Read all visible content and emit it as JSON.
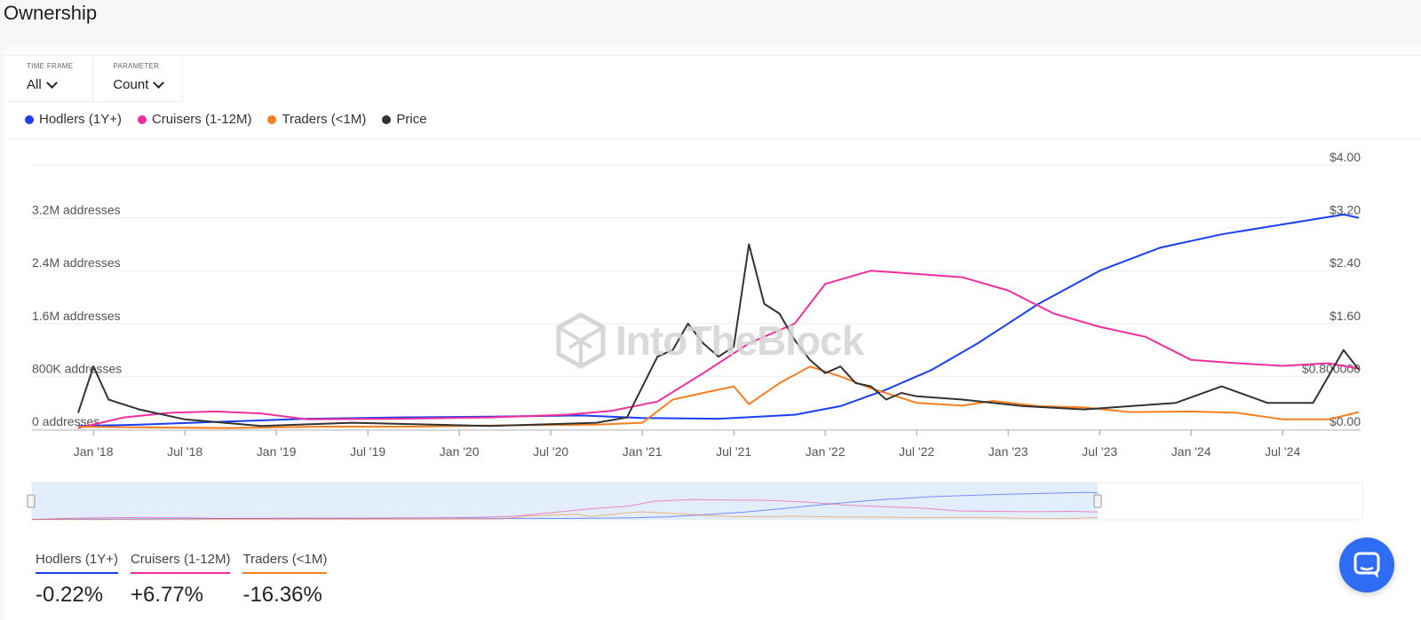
{
  "page": {
    "title": "Ownership"
  },
  "filters": [
    {
      "label": "TIME FRAME",
      "value": "All"
    },
    {
      "label": "PARAMETER",
      "value": "Count"
    }
  ],
  "legend": [
    {
      "label": "Hodlers (1Y+)",
      "color": "#1a3ff2"
    },
    {
      "label": "Cruisers (1-12M)",
      "color": "#f02f9d"
    },
    {
      "label": "Traders (<1M)",
      "color": "#f57f21"
    },
    {
      "label": "Price",
      "color": "#333333"
    }
  ],
  "watermark": "IntoTheBlock",
  "summary": [
    {
      "label": "Hodlers (1Y+)",
      "value": "-0.22%",
      "color": "#1a3ff2"
    },
    {
      "label": "Cruisers (1-12M)",
      "value": "+6.77%",
      "color": "#f02f9d"
    },
    {
      "label": "Traders (<1M)",
      "value": "-16.36%",
      "color": "#f57f21"
    }
  ],
  "icons": {
    "chat": "chat-bubble-icon",
    "dropdown": "chevron-down-icon"
  },
  "chart_data": {
    "type": "line",
    "x_ticks": [
      "Jan '18",
      "Jul '18",
      "Jan '19",
      "Jul '19",
      "Jan '20",
      "Jul '20",
      "Jan '21",
      "Jul '21",
      "Jan '22",
      "Jul '22",
      "Jan '23",
      "Jul '23",
      "Jan '24",
      "Jul '24"
    ],
    "y_left": {
      "ticks": [
        "0 addresses",
        "800K addresses",
        "1.6M addresses",
        "2.4M addresses",
        "3.2M addresses"
      ],
      "range": [
        0,
        4000000
      ]
    },
    "y_right": {
      "ticks": [
        "$0.00",
        "$0.800000",
        "$1.60",
        "$2.40",
        "$3.20",
        "$4.00"
      ],
      "range": [
        0,
        4
      ]
    },
    "x_range": [
      "2017-12",
      "2024-12"
    ],
    "series": [
      {
        "name": "Hodlers (1Y+)",
        "axis": "left",
        "color": "#1a3ff2",
        "x": [
          "2017-12",
          "2018-04",
          "2018-10",
          "2019-03",
          "2019-09",
          "2020-03",
          "2020-09",
          "2021-01",
          "2021-06",
          "2021-11",
          "2022-02",
          "2022-05",
          "2022-08",
          "2022-11",
          "2023-03",
          "2023-07",
          "2023-11",
          "2024-03",
          "2024-07",
          "2024-11",
          "2024-12"
        ],
        "values": [
          50000,
          70000,
          120000,
          160000,
          180000,
          190000,
          210000,
          170000,
          160000,
          220000,
          350000,
          600000,
          900000,
          1300000,
          1900000,
          2400000,
          2750000,
          2950000,
          3100000,
          3250000,
          3200000
        ]
      },
      {
        "name": "Cruisers (1-12M)",
        "axis": "left",
        "color": "#f02f9d",
        "x": [
          "2017-12",
          "2018-03",
          "2018-06",
          "2018-09",
          "2018-12",
          "2019-03",
          "2019-09",
          "2020-03",
          "2020-08",
          "2020-11",
          "2021-02",
          "2021-05",
          "2021-08",
          "2021-11",
          "2022-01",
          "2022-04",
          "2022-07",
          "2022-10",
          "2023-01",
          "2023-04",
          "2023-07",
          "2023-10",
          "2024-01",
          "2024-04",
          "2024-07",
          "2024-10",
          "2024-12"
        ],
        "values": [
          20000,
          180000,
          250000,
          270000,
          240000,
          150000,
          160000,
          180000,
          220000,
          280000,
          420000,
          850000,
          1300000,
          1600000,
          2200000,
          2400000,
          2350000,
          2300000,
          2100000,
          1750000,
          1550000,
          1400000,
          1050000,
          1000000,
          960000,
          1000000,
          920000
        ]
      },
      {
        "name": "Traders (<1M)",
        "axis": "left",
        "color": "#f57f21",
        "x": [
          "2017-12",
          "2018-04",
          "2018-10",
          "2019-04",
          "2019-10",
          "2020-04",
          "2020-10",
          "2021-01",
          "2021-03",
          "2021-05",
          "2021-07",
          "2021-08",
          "2021-10",
          "2021-12",
          "2022-02",
          "2022-04",
          "2022-07",
          "2022-10",
          "2022-12",
          "2023-03",
          "2023-06",
          "2023-09",
          "2024-01",
          "2024-04",
          "2024-07",
          "2024-10",
          "2024-12"
        ],
        "values": [
          40000,
          30000,
          20000,
          40000,
          40000,
          60000,
          70000,
          100000,
          450000,
          550000,
          650000,
          380000,
          700000,
          950000,
          800000,
          620000,
          400000,
          360000,
          430000,
          350000,
          330000,
          260000,
          270000,
          250000,
          150000,
          150000,
          260000
        ]
      },
      {
        "name": "Price",
        "axis": "right",
        "color": "#333333",
        "x": [
          "2017-12",
          "2018-01",
          "2018-02",
          "2018-04",
          "2018-07",
          "2018-12",
          "2019-06",
          "2020-03",
          "2020-10",
          "2020-12",
          "2021-02",
          "2021-03",
          "2021-04",
          "2021-05",
          "2021-06",
          "2021-07",
          "2021-08",
          "2021-09",
          "2021-10",
          "2021-11",
          "2021-12",
          "2022-01",
          "2022-02",
          "2022-03",
          "2022-04",
          "2022-05",
          "2022-06",
          "2022-07",
          "2022-10",
          "2023-02",
          "2023-06",
          "2023-09",
          "2023-12",
          "2024-03",
          "2024-06",
          "2024-09",
          "2024-11",
          "2024-12"
        ],
        "values": [
          0.25,
          0.95,
          0.45,
          0.3,
          0.15,
          0.05,
          0.1,
          0.05,
          0.1,
          0.18,
          1.1,
          1.2,
          1.6,
          1.3,
          1.1,
          1.25,
          2.8,
          1.9,
          1.75,
          1.35,
          1.05,
          0.85,
          0.95,
          0.7,
          0.65,
          0.45,
          0.55,
          0.5,
          0.45,
          0.35,
          0.3,
          0.35,
          0.4,
          0.65,
          0.4,
          0.4,
          1.2,
          0.9
        ]
      }
    ]
  }
}
